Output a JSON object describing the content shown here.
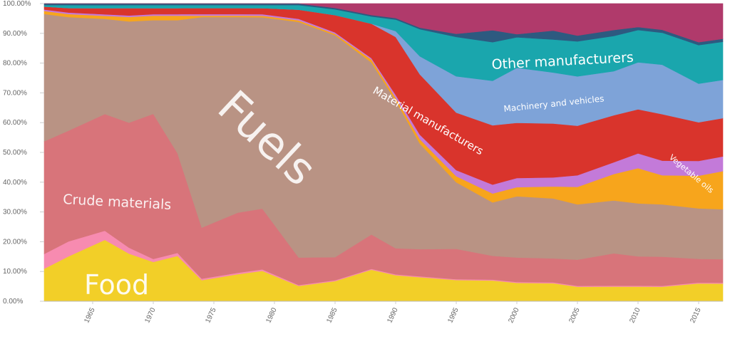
{
  "chart_data": {
    "type": "area",
    "stacked": true,
    "normalized": true,
    "title": "",
    "xlabel": "",
    "ylabel": "",
    "xlim": [
      1961,
      2017
    ],
    "ylim": [
      0,
      100
    ],
    "grid": "horizontal",
    "legend": "inline labels",
    "y_tick_labels": [
      "0.00%",
      "10.00%",
      "20.00%",
      "30.00%",
      "40.00%",
      "50.00%",
      "60.00%",
      "70.00%",
      "80.00%",
      "90.00%",
      "100.00%"
    ],
    "x_tick_labels": [
      "1965",
      "1970",
      "1975",
      "1980",
      "1985",
      "1990",
      "1995",
      "2000",
      "2005",
      "2010",
      "2015"
    ],
    "x": [
      1961,
      1963,
      1966,
      1968,
      1970,
      1972,
      1974,
      1977,
      1979,
      1982,
      1985,
      1988,
      1990,
      1992,
      1995,
      1998,
      2000,
      2003,
      2005,
      2008,
      2010,
      2012,
      2015,
      2017
    ],
    "series": [
      {
        "name": "Food",
        "color": "#f2cf28",
        "values": [
          11,
          15,
          20,
          16,
          13,
          15,
          7,
          9,
          10,
          5,
          7,
          11,
          9,
          8,
          7,
          7,
          6,
          6,
          5,
          5,
          5,
          5,
          6,
          6
        ]
      },
      {
        "name": "",
        "color": "#f78bb0",
        "values": [
          5,
          5,
          3,
          2,
          1,
          1,
          0.5,
          0.5,
          0.5,
          0.3,
          0.3,
          0.3,
          0.3,
          0.3,
          0.3,
          0.3,
          0.3,
          0.3,
          0.3,
          0.3,
          0.3,
          0.3,
          0.3,
          0.3
        ]
      },
      {
        "name": "Crude materials",
        "color": "#d8747a",
        "values": [
          38,
          37,
          38,
          42,
          48,
          33,
          17,
          20,
          20,
          9,
          8,
          12,
          9,
          9,
          10,
          8,
          8,
          8,
          9,
          11,
          10,
          10,
          8,
          8
        ]
      },
      {
        "name": "Fuels",
        "color": "#b99384",
        "values": [
          43,
          38,
          31,
          34,
          31,
          44,
          70,
          65,
          63,
          77,
          77,
          60,
          51,
          35,
          22,
          18,
          20,
          20,
          19,
          18,
          18,
          18,
          17,
          17
        ]
      },
      {
        "name": "Vegetable oils",
        "color": "#f7a51c",
        "values": [
          1,
          1,
          1,
          1.5,
          1.5,
          1.5,
          0.5,
          0.5,
          0.5,
          0.5,
          0.5,
          1,
          1,
          1.5,
          2,
          3,
          3,
          4,
          6,
          9,
          12,
          10,
          11,
          13
        ]
      },
      {
        "name": "",
        "color": "#c37ad9",
        "values": [
          0.5,
          0.5,
          0.5,
          0.5,
          0.5,
          0.5,
          0.5,
          0.5,
          0.5,
          0.5,
          0.5,
          0.5,
          1,
          1.5,
          2,
          3,
          3,
          3,
          4,
          4,
          5,
          5,
          5,
          5
        ]
      },
      {
        "name": "Material manufacturers",
        "color": "#d9342c",
        "values": [
          1,
          1.5,
          2,
          2.5,
          2,
          2,
          2,
          2,
          2,
          3,
          6,
          12,
          20,
          20,
          19,
          20,
          18,
          18,
          17,
          16,
          15,
          16,
          13,
          13
        ]
      },
      {
        "name": "Machinery and vehicles",
        "color": "#7ea3d8",
        "values": [
          0,
          0,
          0,
          0,
          0,
          0,
          0,
          0,
          0,
          0,
          0,
          0,
          2,
          6,
          12,
          15,
          18,
          17,
          17,
          15,
          16,
          17,
          13,
          13
        ]
      },
      {
        "name": "Other manufacturers",
        "color": "#1aa6ad",
        "values": [
          0.5,
          1,
          1,
          1,
          1,
          1,
          1,
          1,
          1,
          1.5,
          2,
          2.5,
          4,
          9,
          13,
          13,
          10,
          11,
          12,
          12,
          11,
          11,
          13,
          13
        ]
      },
      {
        "name": "",
        "color": "#2d5a80",
        "values": [
          0.5,
          0.5,
          0.5,
          0.5,
          0.5,
          0.5,
          0.5,
          0.5,
          0.5,
          0.5,
          0.5,
          0.5,
          0.5,
          0.5,
          1,
          4,
          1,
          3,
          2,
          2,
          1,
          1,
          1,
          1
        ]
      },
      {
        "name": "",
        "color": "#b03a6b",
        "values": [
          0,
          0,
          0,
          0,
          0,
          0,
          0,
          0,
          0,
          0,
          1.5,
          4,
          5,
          8,
          10,
          9,
          10,
          9,
          11,
          9,
          8,
          9,
          13,
          12
        ]
      }
    ],
    "area_labels": {
      "food": "Food",
      "crude": "Crude materials",
      "fuels": "Fuels",
      "material": "Material manufacturers",
      "machinery": "Machinery and vehicles",
      "other": "Other manufacturers",
      "vegoils": "Vegetable oils"
    }
  }
}
